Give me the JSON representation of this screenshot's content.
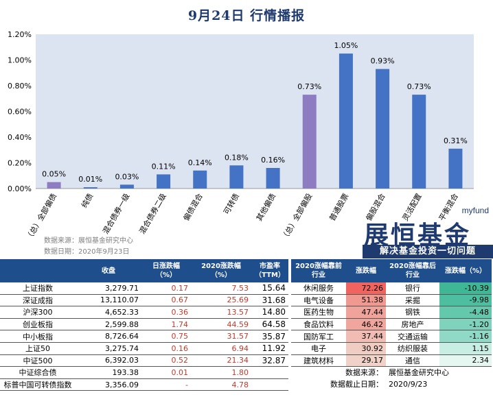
{
  "title": "9月24日  行情播报",
  "colors": {
    "bar": "#4472C4",
    "highlight": "#8E7CC3",
    "header": "#1F4E8C",
    "chartbg": "#DCE3F1",
    "up": "#C0392B"
  },
  "chart_data": {
    "type": "bar",
    "categories": [
      "（总）全部偏债",
      "纯债",
      "混合债券一级",
      "混合债券二级",
      "偏债混合",
      "可转债",
      "其他偏债",
      "（总）全部偏股",
      "普通股票",
      "偏股混合",
      "灵活配置",
      "平衡混合"
    ],
    "values": [
      0.05,
      0.01,
      0.03,
      0.11,
      0.14,
      0.18,
      0.16,
      0.73,
      1.05,
      0.93,
      0.73,
      0.31
    ],
    "labels": [
      "0.05%",
      "0.01%",
      "0.03%",
      "0.11%",
      "0.14%",
      "0.18%",
      "0.16%",
      "0.73%",
      "1.05%",
      "0.93%",
      "0.73%",
      "0.31%"
    ],
    "highlighted": [
      0,
      7
    ],
    "yticks": [
      "0.00%",
      "0.20%",
      "0.40%",
      "0.60%",
      "0.80%",
      "1.00%",
      "1.20%"
    ],
    "ylim": [
      0,
      1.2
    ]
  },
  "logo": {
    "small": "myfund",
    "big": "展恒基金",
    "slogan": "解决基金投资一切问题"
  },
  "source": {
    "line1": "数据来源：展恒基金研究中心",
    "line2": "数据日期：2020年9月23日"
  },
  "table1": {
    "headers": [
      "",
      "收盘",
      "日涨跌幅\n（%）",
      "2020涨跌幅\n（%）",
      "市盈率\n（TTM）"
    ],
    "rows": [
      [
        "上证指数",
        "3,279.71",
        "0.17",
        "7.53",
        "15.64"
      ],
      [
        "深证成指",
        "13,110.07",
        "0.67",
        "25.69",
        "31.68"
      ],
      [
        "沪深300",
        "4,652.33",
        "0.36",
        "13.57",
        "14.80"
      ],
      [
        "创业板指",
        "2,599.88",
        "1.74",
        "44.59",
        "64.58"
      ],
      [
        "中小板指",
        "8,726.64",
        "0.75",
        "31.57",
        "35.87"
      ],
      [
        "上证50",
        "3,275.74",
        "0.16",
        "6.94",
        "11.92"
      ],
      [
        "中证500",
        "6,392.03",
        "0.52",
        "21.34",
        "32.87"
      ],
      [
        "中证综合债",
        "193.38",
        "0.01",
        "1.80",
        ""
      ],
      [
        "标普中国可转债指数",
        "3,356.09",
        "-",
        "4.78",
        ""
      ]
    ]
  },
  "table2": {
    "headers": [
      "2020涨幅靠前\n行业",
      "涨跌幅",
      "2020涨幅靠后\n行业",
      "涨跌幅（%）"
    ],
    "rows": [
      [
        "休闲服务",
        "72.26",
        "银行",
        "-10.39"
      ],
      [
        "电气设备",
        "51.38",
        "采掘",
        "-9.98"
      ],
      [
        "医药生物",
        "47.44",
        "钢铁",
        "-4.48"
      ],
      [
        "食品饮料",
        "46.42",
        "房地产",
        "-1.20"
      ],
      [
        "国防军工",
        "37.44",
        "交通运输",
        "-1.16"
      ],
      [
        "电子",
        "30.92",
        "纺织服装",
        "1.15"
      ],
      [
        "建筑材料",
        "29.17",
        "通信",
        "2.34"
      ]
    ],
    "footer": [
      [
        "数据来源：",
        "展恒基金研究中心"
      ],
      [
        "数据截止日期：",
        "2020/9/23"
      ]
    ]
  }
}
